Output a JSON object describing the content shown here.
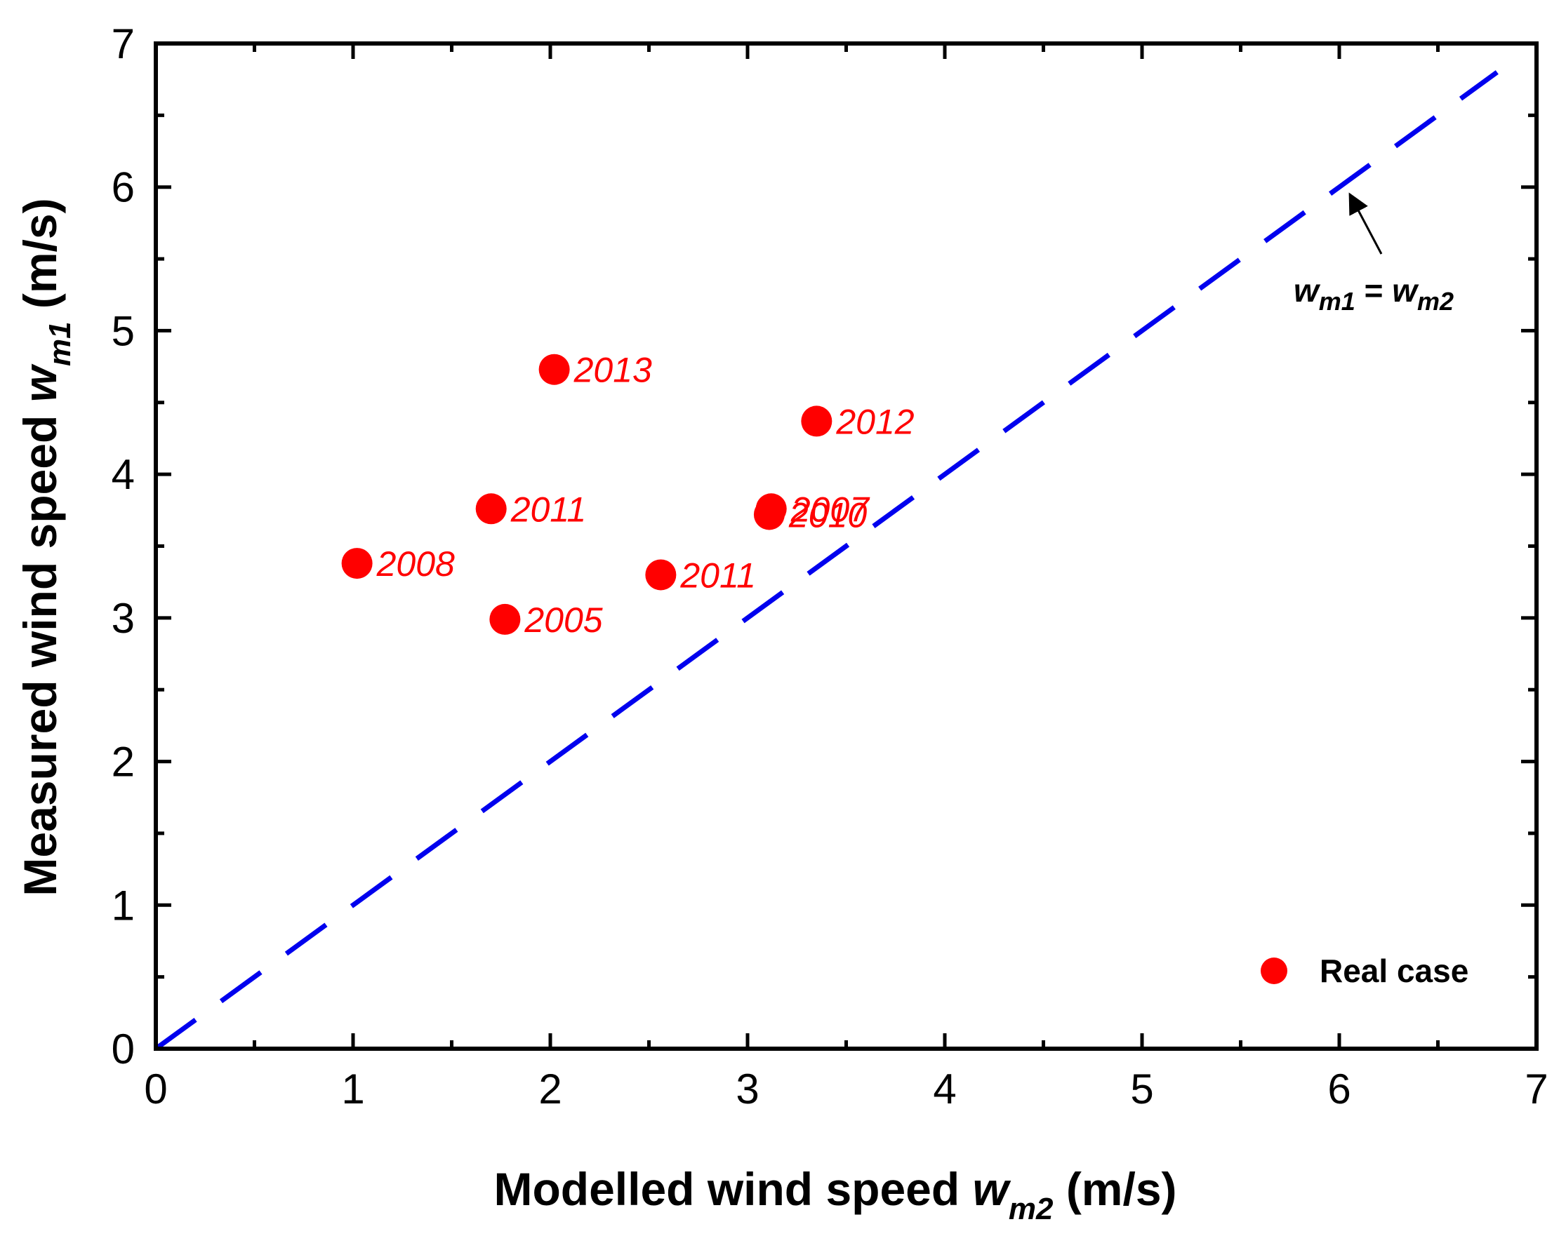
{
  "chart_data": {
    "type": "scatter",
    "title": "",
    "xlabel": {
      "main": "Modelled wind speed ",
      "var": "w",
      "sub": "m2",
      "unit": " (m/s)"
    },
    "ylabel": {
      "main": "Measured wind speed ",
      "var": "w",
      "sub": "m1",
      "unit": "  (m/s)"
    },
    "xlim": [
      0,
      7
    ],
    "ylim": [
      0,
      7
    ],
    "xticks": [
      0,
      1,
      2,
      3,
      4,
      5,
      6,
      7
    ],
    "yticks": [
      0,
      1,
      2,
      3,
      4,
      5,
      6,
      7
    ],
    "grid": false,
    "series": [
      {
        "name": "Real case",
        "color": "#ff0000",
        "points": [
          {
            "x": 1.02,
            "y": 3.38,
            "label": "2008"
          },
          {
            "x": 1.7,
            "y": 3.76,
            "label": "2011"
          },
          {
            "x": 1.77,
            "y": 2.99,
            "label": "2005"
          },
          {
            "x": 2.02,
            "y": 4.73,
            "label": "2013"
          },
          {
            "x": 2.56,
            "y": 3.3,
            "label": "2011"
          },
          {
            "x": 3.12,
            "y": 3.76,
            "label": "2007"
          },
          {
            "x": 3.11,
            "y": 3.72,
            "label": "2010"
          },
          {
            "x": 3.35,
            "y": 4.37,
            "label": "2012"
          }
        ]
      }
    ],
    "reference_line": {
      "name": "1:1 line",
      "color": "#0000ee",
      "x": [
        0,
        6.8
      ],
      "y": [
        0,
        6.8
      ],
      "style": "dashed",
      "annotation": {
        "v1": "w",
        "s1": "m1",
        "eq": " = ",
        "v2": "w",
        "s2": "m2",
        "arrow_to": {
          "x": 6.02,
          "y": 6.02
        }
      }
    },
    "legend": {
      "position": "bottom-right",
      "entries": [
        "Real case"
      ]
    }
  }
}
